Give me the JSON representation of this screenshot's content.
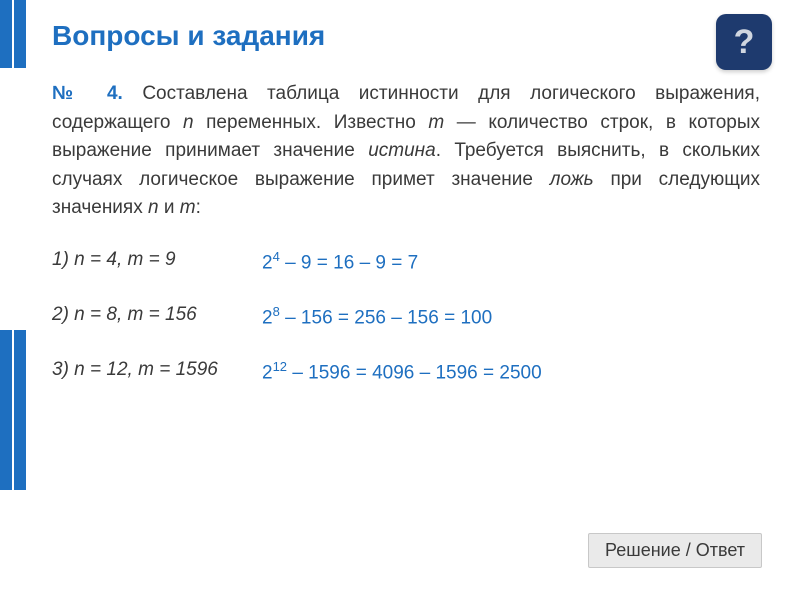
{
  "title": "Вопросы и задания",
  "help_icon_char": "?",
  "problem": {
    "number": "№ 4.",
    "text_parts": {
      "p1": " Составлена таблица истинности для логического выражения, содержащего ",
      "n": "n",
      "p2": " переменных. Известно ",
      "m": "m",
      "p3": " — количество строк, в которых выражение принимает значение ",
      "true_word": "истина",
      "p4": ". Требуется выяснить, в скольких случаях логическое выражение примет значение ",
      "false_word": "ложь",
      "p5": " при следующих значениях ",
      "n2": "n",
      "p6": " и ",
      "m2": "m",
      "p7": ":"
    }
  },
  "cases": [
    {
      "label": "1) n = 4, m = 9",
      "answer_base": "2",
      "answer_exp": "4",
      "answer_rest": " – 9 = 16 – 9 = 7"
    },
    {
      "label": "2) n = 8, m = 156",
      "answer_base": "2",
      "answer_exp": "8",
      "answer_rest": " – 156 = 256 – 156 = 100"
    },
    {
      "label": "3) n = 12, m = 1596",
      "answer_base": "2",
      "answer_exp": "12",
      "answer_rest": " – 1596 = 4096 – 1596 = 2500"
    }
  ],
  "answer_button": "Решение / Ответ",
  "colors": {
    "accent": "#1e6fc0",
    "help_bg": "#1e3a6e",
    "text": "#3a3a3a",
    "button_bg": "#eaeaea",
    "button_border": "#c8c8c8"
  }
}
